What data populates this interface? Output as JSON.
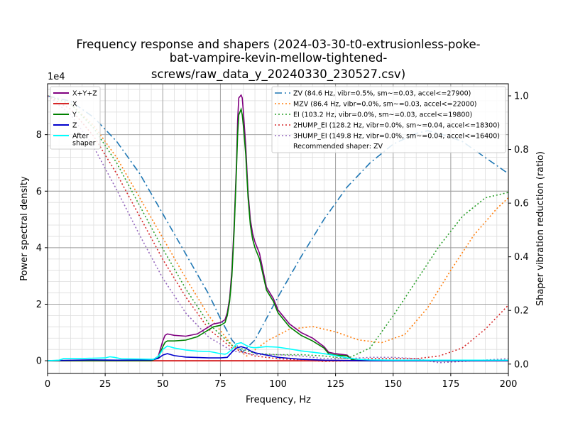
{
  "chart_data": {
    "type": "line",
    "title": [
      "Frequency response and shapers (2024-03-30-t0-extrusionless-poke-",
      "bat-vampire-kevin-mellow-tightened-",
      "screws/raw_data_y_20240330_230527.csv)"
    ],
    "xlabel": "Frequency, Hz",
    "ylabel": "Power spectral density",
    "y2label": "Shaper vibration reduction (ratio)",
    "y_offset_text": "1e4",
    "xlim": [
      0,
      200
    ],
    "ylim": [
      -4500,
      98000
    ],
    "y2lim": [
      -0.035,
      1.045
    ],
    "x_ticks": [
      0,
      25,
      50,
      75,
      100,
      125,
      150,
      175,
      200
    ],
    "y_ticks": [
      0,
      20000,
      40000,
      60000,
      80000
    ],
    "y_tick_labels": [
      "0",
      "2",
      "4",
      "6",
      "8"
    ],
    "y2_ticks": [
      0.0,
      0.2,
      0.4,
      0.6,
      0.8,
      1.0
    ],
    "y2_tick_labels": [
      "0.0",
      "0.2",
      "0.4",
      "0.6",
      "0.8",
      "1.0"
    ],
    "grid": true,
    "psd_series": [
      {
        "name": "X+Y+Z",
        "color": "#800080",
        "points": [
          [
            0,
            0
          ],
          [
            45,
            0
          ],
          [
            48,
            1500
          ],
          [
            50,
            7000
          ],
          [
            51,
            9000
          ],
          [
            52,
            9500
          ],
          [
            55,
            9000
          ],
          [
            60,
            8700
          ],
          [
            65,
            9500
          ],
          [
            70,
            12000
          ],
          [
            72,
            13000
          ],
          [
            75,
            13500
          ],
          [
            77,
            14500
          ],
          [
            78,
            17000
          ],
          [
            79,
            22000
          ],
          [
            80,
            32000
          ],
          [
            81,
            48000
          ],
          [
            82,
            70000
          ],
          [
            82.5,
            85000
          ],
          [
            83,
            93000
          ],
          [
            84,
            94000
          ],
          [
            84.5,
            93000
          ],
          [
            85,
            88000
          ],
          [
            86,
            76000
          ],
          [
            87,
            60000
          ],
          [
            88,
            50000
          ],
          [
            89,
            45000
          ],
          [
            90,
            42000
          ],
          [
            92,
            38000
          ],
          [
            95,
            26000
          ],
          [
            98,
            22000
          ],
          [
            100,
            18000
          ],
          [
            105,
            13000
          ],
          [
            110,
            10000
          ],
          [
            115,
            8000
          ],
          [
            120,
            5000
          ],
          [
            122,
            3000
          ],
          [
            125,
            2500
          ],
          [
            130,
            2000
          ],
          [
            132,
            500
          ],
          [
            135,
            0
          ],
          [
            200,
            0
          ]
        ]
      },
      {
        "name": "X",
        "color": "#d62728",
        "points": [
          [
            0,
            0
          ],
          [
            200,
            0
          ]
        ]
      },
      {
        "name": "Y",
        "color": "#008000",
        "points": [
          [
            0,
            0
          ],
          [
            45,
            0
          ],
          [
            48,
            1000
          ],
          [
            50,
            5000
          ],
          [
            51,
            6500
          ],
          [
            52,
            7000
          ],
          [
            55,
            7000
          ],
          [
            60,
            7300
          ],
          [
            65,
            8500
          ],
          [
            70,
            11000
          ],
          [
            72,
            12000
          ],
          [
            75,
            12500
          ],
          [
            77,
            13500
          ],
          [
            78,
            16000
          ],
          [
            79,
            21000
          ],
          [
            80,
            30000
          ],
          [
            81,
            46000
          ],
          [
            82,
            68000
          ],
          [
            82.5,
            80000
          ],
          [
            83,
            87000
          ],
          [
            84,
            89000
          ],
          [
            84.5,
            87000
          ],
          [
            85,
            83000
          ],
          [
            86,
            73000
          ],
          [
            87,
            58000
          ],
          [
            88,
            48000
          ],
          [
            89,
            43000
          ],
          [
            90,
            40000
          ],
          [
            92,
            36000
          ],
          [
            95,
            25000
          ],
          [
            98,
            21000
          ],
          [
            100,
            17000
          ],
          [
            105,
            12000
          ],
          [
            110,
            9000
          ],
          [
            115,
            7000
          ],
          [
            120,
            4500
          ],
          [
            122,
            2500
          ],
          [
            125,
            2000
          ],
          [
            130,
            1700
          ],
          [
            132,
            400
          ],
          [
            135,
            0
          ],
          [
            200,
            0
          ]
        ]
      },
      {
        "name": "Z",
        "color": "#0000cd",
        "points": [
          [
            0,
            0
          ],
          [
            5,
            100
          ],
          [
            20,
            300
          ],
          [
            30,
            200
          ],
          [
            45,
            300
          ],
          [
            48,
            800
          ],
          [
            50,
            2000
          ],
          [
            52,
            2500
          ],
          [
            55,
            1800
          ],
          [
            60,
            1300
          ],
          [
            70,
            1000
          ],
          [
            75,
            1000
          ],
          [
            78,
            1200
          ],
          [
            80,
            3000
          ],
          [
            82,
            4500
          ],
          [
            84,
            5000
          ],
          [
            86,
            4500
          ],
          [
            88,
            3500
          ],
          [
            90,
            2800
          ],
          [
            95,
            2000
          ],
          [
            100,
            1200
          ],
          [
            110,
            500
          ],
          [
            120,
            200
          ],
          [
            140,
            0
          ],
          [
            200,
            0
          ]
        ]
      },
      {
        "name": "After\nshaper",
        "color": "#00ffff",
        "points": [
          [
            0,
            0
          ],
          [
            5,
            200
          ],
          [
            7,
            800
          ],
          [
            15,
            800
          ],
          [
            25,
            1000
          ],
          [
            27,
            1400
          ],
          [
            29,
            1200
          ],
          [
            32,
            700
          ],
          [
            40,
            600
          ],
          [
            46,
            500
          ],
          [
            48,
            1500
          ],
          [
            50,
            4000
          ],
          [
            52,
            5200
          ],
          [
            55,
            4500
          ],
          [
            60,
            3800
          ],
          [
            65,
            3400
          ],
          [
            70,
            3300
          ],
          [
            72,
            3000
          ],
          [
            75,
            2500
          ],
          [
            77,
            2300
          ],
          [
            78,
            2600
          ],
          [
            80,
            4000
          ],
          [
            82,
            6000
          ],
          [
            84,
            6400
          ],
          [
            86,
            5500
          ],
          [
            88,
            4800
          ],
          [
            90,
            4600
          ],
          [
            95,
            5000
          ],
          [
            100,
            4800
          ],
          [
            105,
            4200
          ],
          [
            110,
            3500
          ],
          [
            115,
            3000
          ],
          [
            120,
            2500
          ],
          [
            125,
            1800
          ],
          [
            130,
            1000
          ],
          [
            135,
            500
          ],
          [
            140,
            300
          ],
          [
            150,
            200
          ],
          [
            200,
            200
          ]
        ]
      }
    ],
    "shaper_series": [
      {
        "name": "ZV (84.6 Hz, vibr=0.5%, sm~=0.03, accel<=27900)",
        "color": "#1f77b4",
        "dash": "10,4,2,4",
        "points": [
          [
            0,
            1.0
          ],
          [
            10,
            0.98
          ],
          [
            20,
            0.92
          ],
          [
            30,
            0.83
          ],
          [
            40,
            0.71
          ],
          [
            50,
            0.56
          ],
          [
            60,
            0.41
          ],
          [
            70,
            0.26
          ],
          [
            75,
            0.17
          ],
          [
            80,
            0.09
          ],
          [
            84.6,
            0.045
          ],
          [
            90,
            0.09
          ],
          [
            100,
            0.25
          ],
          [
            110,
            0.4
          ],
          [
            120,
            0.54
          ],
          [
            130,
            0.66
          ],
          [
            140,
            0.75
          ],
          [
            150,
            0.82
          ],
          [
            160,
            0.86
          ],
          [
            165,
            0.87
          ],
          [
            170,
            0.86
          ],
          [
            180,
            0.83
          ],
          [
            190,
            0.77
          ],
          [
            200,
            0.71
          ]
        ]
      },
      {
        "name": "MZV (86.4 Hz, vibr=0.0%, sm~=0.03, accel<=22000)",
        "color": "#ff7f0e",
        "dash": "2,3",
        "points": [
          [
            0,
            1.0
          ],
          [
            10,
            0.97
          ],
          [
            20,
            0.89
          ],
          [
            30,
            0.77
          ],
          [
            40,
            0.62
          ],
          [
            50,
            0.47
          ],
          [
            60,
            0.32
          ],
          [
            70,
            0.18
          ],
          [
            80,
            0.07
          ],
          [
            86.4,
            0.03
          ],
          [
            95,
            0.085
          ],
          [
            105,
            0.13
          ],
          [
            115,
            0.14
          ],
          [
            125,
            0.12
          ],
          [
            135,
            0.09
          ],
          [
            145,
            0.08
          ],
          [
            155,
            0.11
          ],
          [
            165,
            0.21
          ],
          [
            175,
            0.35
          ],
          [
            185,
            0.48
          ],
          [
            195,
            0.58
          ],
          [
            200,
            0.62
          ]
        ]
      },
      {
        "name": "EI (103.2 Hz, vibr=0.0%, sm~=0.03, accel<=19800)",
        "color": "#2ca02c",
        "dash": "2,3",
        "points": [
          [
            0,
            1.0
          ],
          [
            10,
            0.97
          ],
          [
            20,
            0.88
          ],
          [
            30,
            0.75
          ],
          [
            40,
            0.59
          ],
          [
            50,
            0.43
          ],
          [
            60,
            0.28
          ],
          [
            70,
            0.15
          ],
          [
            80,
            0.07
          ],
          [
            90,
            0.04
          ],
          [
            100,
            0.035
          ],
          [
            110,
            0.035
          ],
          [
            120,
            0.03
          ],
          [
            130,
            0.02
          ],
          [
            140,
            0.06
          ],
          [
            150,
            0.18
          ],
          [
            160,
            0.31
          ],
          [
            170,
            0.44
          ],
          [
            180,
            0.55
          ],
          [
            190,
            0.62
          ],
          [
            200,
            0.64
          ]
        ]
      },
      {
        "name": "2HUMP_EI (128.2 Hz, vibr=0.0%, sm~=0.04, accel<=18300)",
        "color": "#d62728",
        "dash": "2,3",
        "points": [
          [
            0,
            1.0
          ],
          [
            10,
            0.95
          ],
          [
            20,
            0.85
          ],
          [
            30,
            0.71
          ],
          [
            40,
            0.55
          ],
          [
            50,
            0.39
          ],
          [
            60,
            0.25
          ],
          [
            70,
            0.13
          ],
          [
            80,
            0.06
          ],
          [
            90,
            0.03
          ],
          [
            100,
            0.02
          ],
          [
            110,
            0.015
          ],
          [
            120,
            0.01
          ],
          [
            130,
            0.012
          ],
          [
            140,
            0.02
          ],
          [
            150,
            0.02
          ],
          [
            160,
            0.02
          ],
          [
            170,
            0.03
          ],
          [
            180,
            0.06
          ],
          [
            190,
            0.13
          ],
          [
            200,
            0.22
          ]
        ]
      },
      {
        "name": "3HUMP_EI (149.8 Hz, vibr=0.0%, sm~=0.04, accel<=16400)",
        "color": "#9467bd",
        "dash": "2,3",
        "points": [
          [
            0,
            1.0
          ],
          [
            10,
            0.93
          ],
          [
            20,
            0.81
          ],
          [
            30,
            0.65
          ],
          [
            40,
            0.48
          ],
          [
            50,
            0.32
          ],
          [
            60,
            0.19
          ],
          [
            70,
            0.1
          ],
          [
            80,
            0.05
          ],
          [
            90,
            0.035
          ],
          [
            100,
            0.035
          ],
          [
            110,
            0.03
          ],
          [
            120,
            0.02
          ],
          [
            130,
            0.02
          ],
          [
            140,
            0.025
          ],
          [
            150,
            0.025
          ],
          [
            160,
            0.02
          ],
          [
            170,
            0.005
          ],
          [
            180,
            0.01
          ],
          [
            190,
            0.015
          ],
          [
            200,
            0.02
          ]
        ]
      }
    ],
    "legend_left_placement": "top-left",
    "legend_right_placement": "top-right",
    "recommended_shaper": "Recommended shaper: ZV"
  }
}
